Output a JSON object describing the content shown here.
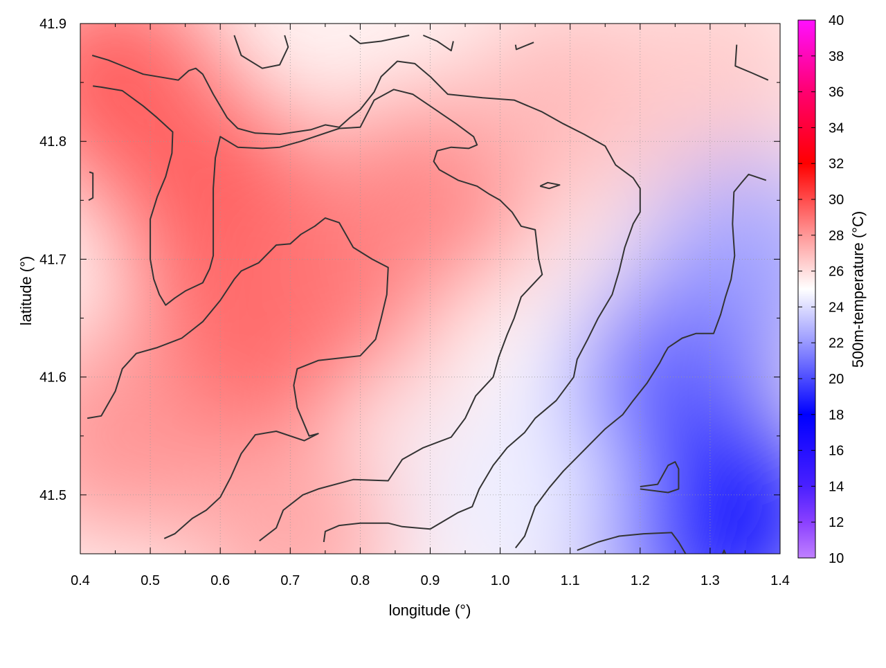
{
  "chart_data": {
    "type": "heatmap",
    "xlabel": "longitude (°)",
    "ylabel": "latitude (°)",
    "colorbar_label": "500m-temperature (°C)",
    "xlim": [
      0.4,
      1.4
    ],
    "ylim": [
      41.45,
      41.9
    ],
    "x_ticks": [
      "0.4",
      "0.5",
      "0.6",
      "0.7",
      "0.8",
      "0.9",
      "1.0",
      "1.1",
      "1.2",
      "1.3",
      "1.4"
    ],
    "y_ticks": [
      "41.5",
      "41.6",
      "41.7",
      "41.8",
      "41.9"
    ],
    "colorbar_range": [
      10,
      40
    ],
    "colorbar_ticks": [
      "10",
      "12",
      "14",
      "16",
      "18",
      "20",
      "22",
      "24",
      "26",
      "28",
      "30",
      "32",
      "34",
      "36",
      "38",
      "40"
    ],
    "colormap": [
      {
        "value": 10,
        "color": "#c080ff"
      },
      {
        "value": 12,
        "color": "#8a40ff"
      },
      {
        "value": 14,
        "color": "#4a20ff"
      },
      {
        "value": 18,
        "color": "#0000ff"
      },
      {
        "value": 22,
        "color": "#9898ff"
      },
      {
        "value": 25,
        "color": "#ffffff"
      },
      {
        "value": 28,
        "color": "#ff9898"
      },
      {
        "value": 32,
        "color": "#ff0000"
      },
      {
        "value": 36,
        "color": "#ff0070"
      },
      {
        "value": 40,
        "color": "#ff10ff"
      }
    ],
    "grid": true,
    "field_samples": [
      {
        "lon": 0.45,
        "lat": 41.85,
        "value": 29.5
      },
      {
        "lon": 0.6,
        "lat": 41.75,
        "value": 29.5
      },
      {
        "lon": 0.6,
        "lat": 41.6,
        "value": 29.5
      },
      {
        "lon": 0.75,
        "lat": 41.68,
        "value": 29.0
      },
      {
        "lon": 0.45,
        "lat": 41.55,
        "value": 28.0
      },
      {
        "lon": 0.9,
        "lat": 41.75,
        "value": 28.5
      },
      {
        "lon": 0.7,
        "lat": 41.47,
        "value": 27.5
      },
      {
        "lon": 1.1,
        "lat": 41.83,
        "value": 27.0
      },
      {
        "lon": 1.3,
        "lat": 41.85,
        "value": 26.5
      },
      {
        "lon": 1.0,
        "lat": 41.6,
        "value": 26.5
      },
      {
        "lon": 1.08,
        "lat": 41.6,
        "value": 25.0
      },
      {
        "lon": 1.2,
        "lat": 41.68,
        "value": 25.5
      },
      {
        "lon": 1.35,
        "lat": 41.7,
        "value": 22.5
      },
      {
        "lon": 1.25,
        "lat": 41.6,
        "value": 21.0
      },
      {
        "lon": 1.2,
        "lat": 41.5,
        "value": 18.0
      },
      {
        "lon": 1.32,
        "lat": 41.48,
        "value": 18.5
      },
      {
        "lon": 1.1,
        "lat": 41.5,
        "value": 20.5
      },
      {
        "lon": 1.02,
        "lat": 41.5,
        "value": 24.5
      }
    ],
    "contours": [
      {
        "points": [
          [
            0.62,
            41.89
          ],
          [
            0.63,
            41.873
          ],
          [
            0.66,
            41.862
          ],
          [
            0.685,
            41.865
          ],
          [
            0.697,
            41.88
          ],
          [
            0.692,
            41.89
          ]
        ]
      },
      {
        "points": [
          [
            0.785,
            41.89
          ],
          [
            0.8,
            41.883
          ],
          [
            0.83,
            41.885
          ],
          [
            0.87,
            41.89
          ]
        ]
      },
      {
        "points": [
          [
            0.89,
            41.89
          ],
          [
            0.91,
            41.885
          ],
          [
            0.93,
            41.877
          ],
          [
            0.933,
            41.885
          ]
        ]
      },
      {
        "points": [
          [
            1.022,
            41.882
          ],
          [
            1.023,
            41.878
          ],
          [
            1.048,
            41.884
          ]
        ]
      },
      {
        "points": [
          [
            1.338,
            41.882
          ],
          [
            1.336,
            41.864
          ],
          [
            1.36,
            41.858
          ],
          [
            1.383,
            41.852
          ]
        ]
      },
      {
        "points": [
          [
            0.417,
            41.873
          ],
          [
            0.44,
            41.869
          ],
          [
            0.465,
            41.863
          ],
          [
            0.49,
            41.857
          ],
          [
            0.54,
            41.852
          ],
          [
            0.555,
            41.86
          ],
          [
            0.565,
            41.862
          ],
          [
            0.575,
            41.857
          ],
          [
            0.59,
            41.84
          ],
          [
            0.61,
            41.82
          ],
          [
            0.625,
            41.811
          ],
          [
            0.65,
            41.807
          ],
          [
            0.685,
            41.806
          ],
          [
            0.73,
            41.81
          ],
          [
            0.75,
            41.814
          ],
          [
            0.77,
            41.812
          ],
          [
            0.785,
            41.82
          ],
          [
            0.8,
            41.827
          ],
          [
            0.82,
            41.842
          ],
          [
            0.83,
            41.855
          ],
          [
            0.853,
            41.868
          ],
          [
            0.878,
            41.866
          ],
          [
            0.9,
            41.855
          ],
          [
            0.925,
            41.84
          ],
          [
            0.975,
            41.837
          ],
          [
            1.02,
            41.835
          ],
          [
            1.06,
            41.825
          ],
          [
            1.09,
            41.815
          ],
          [
            1.12,
            41.806
          ],
          [
            1.15,
            41.796
          ],
          [
            1.165,
            41.78
          ],
          [
            1.19,
            41.769
          ],
          [
            1.2,
            41.76
          ],
          [
            1.2,
            41.74
          ],
          [
            1.19,
            41.73
          ],
          [
            1.178,
            41.71
          ],
          [
            1.17,
            41.69
          ],
          [
            1.16,
            41.67
          ],
          [
            1.14,
            41.65
          ],
          [
            1.125,
            41.632
          ],
          [
            1.11,
            41.615
          ],
          [
            1.105,
            41.6
          ],
          [
            1.08,
            41.58
          ],
          [
            1.05,
            41.565
          ],
          [
            1.035,
            41.553
          ],
          [
            1.01,
            41.54
          ],
          [
            0.99,
            41.525
          ],
          [
            0.97,
            41.505
          ],
          [
            0.96,
            41.49
          ],
          [
            0.94,
            41.485
          ],
          [
            0.9,
            41.471
          ],
          [
            0.86,
            41.473
          ],
          [
            0.84,
            41.476
          ],
          [
            0.8,
            41.476
          ],
          [
            0.77,
            41.474
          ],
          [
            0.75,
            41.469
          ],
          [
            0.748,
            41.46
          ]
        ]
      },
      {
        "points": [
          [
            0.418,
            41.847
          ],
          [
            0.43,
            41.846
          ],
          [
            0.46,
            41.843
          ],
          [
            0.49,
            41.83
          ],
          [
            0.51,
            41.82
          ],
          [
            0.532,
            41.808
          ],
          [
            0.531,
            41.79
          ],
          [
            0.522,
            41.77
          ],
          [
            0.51,
            41.753
          ],
          [
            0.5,
            41.734
          ],
          [
            0.5,
            41.72
          ],
          [
            0.5,
            41.7
          ],
          [
            0.505,
            41.683
          ],
          [
            0.513,
            41.67
          ],
          [
            0.522,
            41.661
          ],
          [
            0.535,
            41.667
          ],
          [
            0.55,
            41.673
          ],
          [
            0.575,
            41.68
          ],
          [
            0.585,
            41.692
          ],
          [
            0.59,
            41.703
          ],
          [
            0.59,
            41.73
          ],
          [
            0.59,
            41.76
          ],
          [
            0.593,
            41.786
          ],
          [
            0.6,
            41.804
          ],
          [
            0.625,
            41.795
          ],
          [
            0.66,
            41.794
          ],
          [
            0.685,
            41.795
          ],
          [
            0.715,
            41.8
          ],
          [
            0.77,
            41.811
          ],
          [
            0.8,
            41.812
          ],
          [
            0.82,
            41.835
          ],
          [
            0.848,
            41.844
          ],
          [
            0.875,
            41.84
          ],
          [
            0.9,
            41.83
          ],
          [
            0.937,
            41.815
          ],
          [
            0.962,
            41.804
          ],
          [
            0.967,
            41.797
          ],
          [
            0.955,
            41.794
          ],
          [
            0.93,
            41.795
          ],
          [
            0.91,
            41.792
          ],
          [
            0.905,
            41.783
          ],
          [
            0.913,
            41.776
          ],
          [
            0.94,
            41.767
          ],
          [
            0.967,
            41.762
          ],
          [
            0.985,
            41.755
          ],
          [
            1.0,
            41.75
          ],
          [
            1.017,
            41.74
          ],
          [
            1.03,
            41.728
          ],
          [
            1.05,
            41.725
          ],
          [
            1.055,
            41.7
          ],
          [
            1.06,
            41.687
          ],
          [
            1.03,
            41.668
          ],
          [
            1.02,
            41.65
          ],
          [
            1.01,
            41.636
          ],
          [
            0.998,
            41.617
          ],
          [
            0.99,
            41.6
          ],
          [
            0.965,
            41.584
          ],
          [
            0.95,
            41.565
          ],
          [
            0.93,
            41.549
          ],
          [
            0.89,
            41.54
          ],
          [
            0.86,
            41.53
          ],
          [
            0.84,
            41.512
          ],
          [
            0.79,
            41.513
          ],
          [
            0.74,
            41.505
          ],
          [
            0.718,
            41.5
          ],
          [
            0.69,
            41.487
          ],
          [
            0.68,
            41.472
          ],
          [
            0.656,
            41.461
          ]
        ]
      },
      {
        "points": [
          [
            0.41,
            41.565
          ],
          [
            0.43,
            41.567
          ],
          [
            0.45,
            41.588
          ],
          [
            0.46,
            41.607
          ],
          [
            0.48,
            41.62
          ],
          [
            0.51,
            41.625
          ],
          [
            0.545,
            41.633
          ],
          [
            0.56,
            41.64
          ],
          [
            0.575,
            41.647
          ],
          [
            0.6,
            41.665
          ],
          [
            0.62,
            41.683
          ],
          [
            0.63,
            41.69
          ],
          [
            0.655,
            41.697
          ],
          [
            0.68,
            41.712
          ],
          [
            0.7,
            41.713
          ],
          [
            0.715,
            41.721
          ],
          [
            0.735,
            41.728
          ],
          [
            0.75,
            41.735
          ],
          [
            0.77,
            41.731
          ],
          [
            0.79,
            41.71
          ],
          [
            0.817,
            41.7
          ],
          [
            0.84,
            41.693
          ],
          [
            0.838,
            41.67
          ],
          [
            0.83,
            41.65
          ],
          [
            0.822,
            41.632
          ],
          [
            0.8,
            41.618
          ],
          [
            0.77,
            41.616
          ],
          [
            0.74,
            41.614
          ],
          [
            0.71,
            41.607
          ],
          [
            0.705,
            41.593
          ],
          [
            0.71,
            41.574
          ],
          [
            0.727,
            41.55
          ],
          [
            0.74,
            41.552
          ],
          [
            0.72,
            41.546
          ],
          [
            0.68,
            41.554
          ],
          [
            0.65,
            41.551
          ],
          [
            0.63,
            41.535
          ],
          [
            0.615,
            41.515
          ],
          [
            0.6,
            41.498
          ],
          [
            0.58,
            41.487
          ],
          [
            0.56,
            41.48
          ],
          [
            0.535,
            41.467
          ],
          [
            0.52,
            41.463
          ]
        ]
      },
      {
        "points": [
          [
            0.413,
            41.774
          ],
          [
            0.418,
            41.773
          ],
          [
            0.418,
            41.752
          ],
          [
            0.412,
            41.75
          ]
        ]
      },
      {
        "points": [
          [
            1.057,
            41.762
          ],
          [
            1.068,
            41.765
          ],
          [
            1.085,
            41.763
          ],
          [
            1.07,
            41.76
          ],
          [
            1.057,
            41.762
          ]
        ]
      },
      {
        "points": [
          [
            1.022,
            41.455
          ],
          [
            1.035,
            41.465
          ],
          [
            1.05,
            41.49
          ],
          [
            1.07,
            41.506
          ],
          [
            1.09,
            41.52
          ],
          [
            1.11,
            41.532
          ],
          [
            1.13,
            41.544
          ],
          [
            1.15,
            41.556
          ],
          [
            1.175,
            41.568
          ],
          [
            1.19,
            41.58
          ],
          [
            1.21,
            41.595
          ],
          [
            1.228,
            41.612
          ],
          [
            1.235,
            41.62
          ],
          [
            1.24,
            41.625
          ],
          [
            1.26,
            41.633
          ],
          [
            1.28,
            41.637
          ],
          [
            1.305,
            41.637
          ],
          [
            1.315,
            41.653
          ],
          [
            1.322,
            41.668
          ],
          [
            1.33,
            41.683
          ],
          [
            1.335,
            41.703
          ],
          [
            1.332,
            41.73
          ],
          [
            1.334,
            41.757
          ],
          [
            1.345,
            41.765
          ],
          [
            1.355,
            41.772
          ],
          [
            1.38,
            41.767
          ]
        ]
      },
      {
        "points": [
          [
            1.2,
            41.507
          ],
          [
            1.225,
            41.509
          ],
          [
            1.24,
            41.525
          ],
          [
            1.25,
            41.528
          ],
          [
            1.255,
            41.522
          ],
          [
            1.255,
            41.505
          ],
          [
            1.24,
            41.502
          ],
          [
            1.2,
            41.505
          ]
        ]
      },
      {
        "points": [
          [
            1.11,
            41.453
          ],
          [
            1.14,
            41.46
          ],
          [
            1.17,
            41.465
          ],
          [
            1.205,
            41.467
          ],
          [
            1.245,
            41.468
          ],
          [
            1.255,
            41.46
          ],
          [
            1.265,
            41.45
          ]
        ]
      },
      {
        "points": [
          [
            1.318,
            41.45
          ],
          [
            1.32,
            41.453
          ],
          [
            1.322,
            41.45
          ]
        ]
      }
    ]
  }
}
